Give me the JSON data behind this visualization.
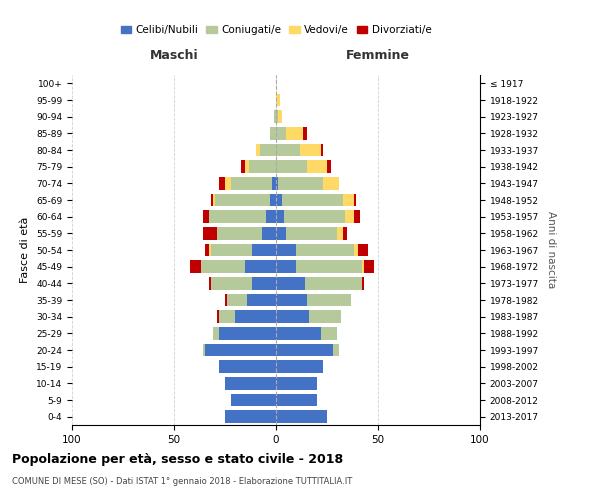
{
  "age_groups": [
    "0-4",
    "5-9",
    "10-14",
    "15-19",
    "20-24",
    "25-29",
    "30-34",
    "35-39",
    "40-44",
    "45-49",
    "50-54",
    "55-59",
    "60-64",
    "65-69",
    "70-74",
    "75-79",
    "80-84",
    "85-89",
    "90-94",
    "95-99",
    "100+"
  ],
  "birth_years": [
    "2013-2017",
    "2008-2012",
    "2003-2007",
    "1998-2002",
    "1993-1997",
    "1988-1992",
    "1983-1987",
    "1978-1982",
    "1973-1977",
    "1968-1972",
    "1963-1967",
    "1958-1962",
    "1953-1957",
    "1948-1952",
    "1943-1947",
    "1938-1942",
    "1933-1937",
    "1928-1932",
    "1923-1927",
    "1918-1922",
    "≤ 1917"
  ],
  "males": {
    "celibe": [
      25,
      22,
      25,
      28,
      35,
      28,
      20,
      14,
      12,
      15,
      12,
      7,
      5,
      3,
      2,
      0,
      0,
      0,
      0,
      0,
      0
    ],
    "coniugato": [
      0,
      0,
      0,
      0,
      1,
      3,
      8,
      10,
      20,
      22,
      20,
      22,
      28,
      27,
      20,
      13,
      8,
      3,
      1,
      0,
      0
    ],
    "vedovo": [
      0,
      0,
      0,
      0,
      0,
      0,
      0,
      0,
      0,
      0,
      1,
      0,
      0,
      1,
      3,
      2,
      2,
      0,
      0,
      0,
      0
    ],
    "divorziato": [
      0,
      0,
      0,
      0,
      0,
      0,
      1,
      1,
      1,
      5,
      2,
      7,
      3,
      1,
      3,
      2,
      0,
      0,
      0,
      0,
      0
    ]
  },
  "females": {
    "nubile": [
      25,
      20,
      20,
      23,
      28,
      22,
      16,
      15,
      14,
      10,
      10,
      5,
      4,
      3,
      1,
      0,
      0,
      0,
      0,
      0,
      0
    ],
    "coniugata": [
      0,
      0,
      0,
      0,
      3,
      8,
      16,
      22,
      28,
      32,
      28,
      25,
      30,
      30,
      22,
      15,
      12,
      5,
      1,
      0,
      0
    ],
    "vedova": [
      0,
      0,
      0,
      0,
      0,
      0,
      0,
      0,
      0,
      1,
      2,
      3,
      4,
      5,
      8,
      10,
      10,
      8,
      2,
      2,
      0
    ],
    "divorziata": [
      0,
      0,
      0,
      0,
      0,
      0,
      0,
      0,
      1,
      5,
      5,
      2,
      3,
      1,
      0,
      2,
      1,
      2,
      0,
      0,
      0
    ]
  },
  "colors": {
    "celibe": "#4472c4",
    "coniugato": "#b5c99a",
    "vedovo": "#ffd966",
    "divorziato": "#c00000"
  },
  "xlim": [
    -100,
    100
  ],
  "xticks": [
    -100,
    -50,
    0,
    50,
    100
  ],
  "xticklabels": [
    "100",
    "50",
    "0",
    "50",
    "100"
  ],
  "title": "Popolazione per età, sesso e stato civile - 2018",
  "subtitle": "COMUNE DI MESE (SO) - Dati ISTAT 1° gennaio 2018 - Elaborazione TUTTITALIA.IT",
  "ylabel_left": "Fasce di età",
  "ylabel_right": "Anni di nascita",
  "label_maschi": "Maschi",
  "label_femmine": "Femmine",
  "legend_labels": [
    "Celibi/Nubili",
    "Coniugati/e",
    "Vedovi/e",
    "Divorziati/e"
  ],
  "bar_height": 0.75,
  "background_color": "#ffffff",
  "grid_color": "#bbbbbb"
}
